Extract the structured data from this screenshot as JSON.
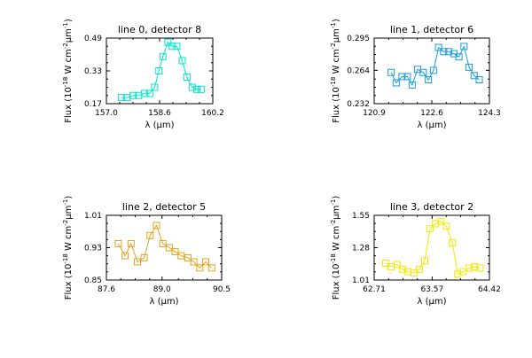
{
  "colors": {
    "background": "#ffffff",
    "axes": "#000000",
    "series": [
      "#00e5c8",
      "#1a9cd8",
      "#e6a217",
      "#f2ea00"
    ]
  },
  "chart_data": [
    {
      "type": "line",
      "marker": "square-open",
      "title": "line 0, detector 8",
      "xlabel": "λ (μm)",
      "ylabel": "Flux (10^-18 W cm^-2 μm^-1)",
      "xlim": [
        157.0,
        160.2
      ],
      "ylim": [
        0.17,
        0.49
      ],
      "xticks": [
        "157.0",
        "158.6",
        "160.2"
      ],
      "yticks": [
        "0.17",
        "0.33",
        "0.49"
      ],
      "x": [
        157.45,
        157.62,
        157.8,
        157.97,
        158.15,
        158.3,
        158.45,
        158.58,
        158.7,
        158.85,
        158.98,
        159.12,
        159.28,
        159.42,
        159.58,
        159.72,
        159.85
      ],
      "y": [
        0.2,
        0.2,
        0.21,
        0.21,
        0.22,
        0.22,
        0.25,
        0.33,
        0.4,
        0.47,
        0.45,
        0.45,
        0.38,
        0.3,
        0.25,
        0.24,
        0.24
      ]
    },
    {
      "type": "line",
      "marker": "square-open",
      "title": "line 1, detector 6",
      "xlabel": "λ (μm)",
      "ylabel": "Flux (10^-18 W cm^-2 μm^-1)",
      "xlim": [
        120.9,
        124.3
      ],
      "ylim": [
        0.232,
        0.295
      ],
      "xticks": [
        "120.9",
        "122.6",
        "124.3"
      ],
      "yticks": [
        "0.232",
        "0.264",
        "0.295"
      ],
      "x": [
        121.4,
        121.55,
        121.72,
        121.88,
        122.02,
        122.18,
        122.35,
        122.5,
        122.65,
        122.8,
        122.95,
        123.1,
        123.25,
        123.4,
        123.55,
        123.7,
        123.85,
        124.0
      ],
      "y": [
        0.262,
        0.252,
        0.258,
        0.258,
        0.25,
        0.265,
        0.262,
        0.255,
        0.264,
        0.286,
        0.282,
        0.282,
        0.28,
        0.277,
        0.287,
        0.267,
        0.259,
        0.255
      ]
    },
    {
      "type": "line",
      "marker": "square-open",
      "title": "line 2, detector 5",
      "xlabel": "λ (μm)",
      "ylabel": "Flux (10^-18 W cm^-2 μm^-1)",
      "xlim": [
        87.6,
        90.5
      ],
      "ylim": [
        0.85,
        1.01
      ],
      "xticks": [
        "87.6",
        "89.0",
        "90.5"
      ],
      "yticks": [
        "0.85",
        "0.93",
        "1.01"
      ],
      "x": [
        87.9,
        88.07,
        88.22,
        88.38,
        88.55,
        88.7,
        88.86,
        89.02,
        89.18,
        89.33,
        89.48,
        89.65,
        89.8,
        89.95,
        90.1,
        90.25
      ],
      "y": [
        0.94,
        0.91,
        0.94,
        0.895,
        0.905,
        0.96,
        0.985,
        0.94,
        0.93,
        0.92,
        0.91,
        0.905,
        0.895,
        0.88,
        0.895,
        0.88
      ]
    },
    {
      "type": "line",
      "marker": "square-open",
      "title": "line 3, detector 2",
      "xlabel": "λ (μm)",
      "ylabel": "Flux (10^-18 W cm^-2 μm^-1)",
      "xlim": [
        62.71,
        64.42
      ],
      "ylim": [
        1.01,
        1.55
      ],
      "xticks": [
        "62.71",
        "63.57",
        "64.42"
      ],
      "yticks": [
        "1.01",
        "1.28",
        "1.55"
      ],
      "x": [
        62.88,
        62.96,
        63.05,
        63.13,
        63.21,
        63.3,
        63.38,
        63.46,
        63.54,
        63.62,
        63.7,
        63.78,
        63.87,
        63.95,
        64.03,
        64.12,
        64.2,
        64.28
      ],
      "y": [
        1.15,
        1.12,
        1.14,
        1.1,
        1.08,
        1.07,
        1.1,
        1.17,
        1.44,
        1.48,
        1.5,
        1.46,
        1.32,
        1.06,
        1.08,
        1.11,
        1.12,
        1.11
      ]
    }
  ]
}
